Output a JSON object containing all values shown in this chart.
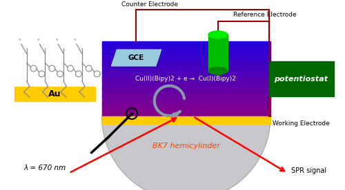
{
  "fig_width": 5.0,
  "fig_height": 2.76,
  "dpi": 100,
  "bg_color": "#ffffff",
  "blue_top": "#2222dd",
  "purple_bot": "#880088",
  "gold_color": "#ffcc00",
  "hemi_color": "#c8c8cc",
  "gce_color": "#99ccdd",
  "potentiostat_bg": "#006600",
  "potentiostat_text": "#ffffff",
  "ref_green_mid": "#00bb00",
  "ref_green_top": "#00ee00",
  "ref_green_bot": "#008800",
  "wire_color": "#990000",
  "beam_color": "#ff0000",
  "arrow_color": "#8899aa",
  "chem_eq": "Cu(II)(Bipy)2 + e →  Cu(I)(Bipy)2",
  "gce_label": "GCE",
  "counter_label": "Counter Electrode",
  "ref_label": "Reference Electrode",
  "working_label": "Working Electrode",
  "pot_label": "potentiostat",
  "bk7_label": "BK7 hemicylinder",
  "lambda_label": "λ = 670 nm",
  "spr_label": "SPR signal",
  "polymer_color": "#888888",
  "au_color": "#ffcc00"
}
